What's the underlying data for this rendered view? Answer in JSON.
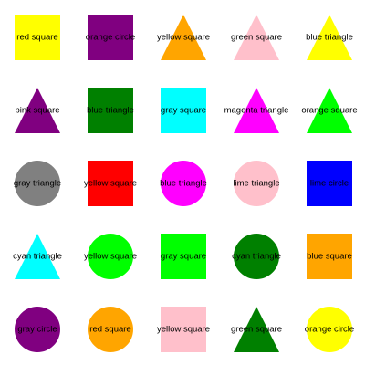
{
  "grid": {
    "rows": [
      [
        {
          "shape": "square",
          "color": "#ffff00",
          "label": "red square"
        },
        {
          "shape": "square",
          "color": "#800080",
          "label": "orange circle"
        },
        {
          "shape": "triangle",
          "color": "#ffa500",
          "label": "yellow square"
        },
        {
          "shape": "triangle",
          "color": "#ffc0cb",
          "label": "green square"
        },
        {
          "shape": "triangle",
          "color": "#ffff00",
          "label": "blue triangle"
        }
      ],
      [
        {
          "shape": "triangle",
          "color": "#800080",
          "label": "pink square"
        },
        {
          "shape": "square",
          "color": "#008000",
          "label": "blue triangle"
        },
        {
          "shape": "square",
          "color": "#00ffff",
          "label": "gray square"
        },
        {
          "shape": "triangle",
          "color": "#ff00ff",
          "label": "magenta triangle"
        },
        {
          "shape": "triangle",
          "color": "#00ff00",
          "label": "orange square"
        }
      ],
      [
        {
          "shape": "circle",
          "color": "#808080",
          "label": "gray triangle"
        },
        {
          "shape": "square",
          "color": "#ff0000",
          "label": "yellow square"
        },
        {
          "shape": "circle",
          "color": "#ff00ff",
          "label": "blue triangle"
        },
        {
          "shape": "circle",
          "color": "#ffc0cb",
          "label": "lime triangle"
        },
        {
          "shape": "square",
          "color": "#0000ff",
          "label": "lime circle"
        }
      ],
      [
        {
          "shape": "triangle",
          "color": "#00ffff",
          "label": "cyan triangle"
        },
        {
          "shape": "circle",
          "color": "#00ff00",
          "label": "yellow square"
        },
        {
          "shape": "square",
          "color": "#00ff00",
          "label": "gray square"
        },
        {
          "shape": "circle",
          "color": "#008000",
          "label": "cyan triangle"
        },
        {
          "shape": "square",
          "color": "#ffa500",
          "label": "blue square"
        }
      ],
      [
        {
          "shape": "circle",
          "color": "#800080",
          "label": "gray circle"
        },
        {
          "shape": "circle",
          "color": "#ffa500",
          "label": "red square"
        },
        {
          "shape": "square",
          "color": "#ffc0cb",
          "label": "yellow square"
        },
        {
          "shape": "triangle",
          "color": "#008000",
          "label": "green square"
        },
        {
          "shape": "circle",
          "color": "#ffff00",
          "label": "orange circle"
        }
      ]
    ]
  }
}
